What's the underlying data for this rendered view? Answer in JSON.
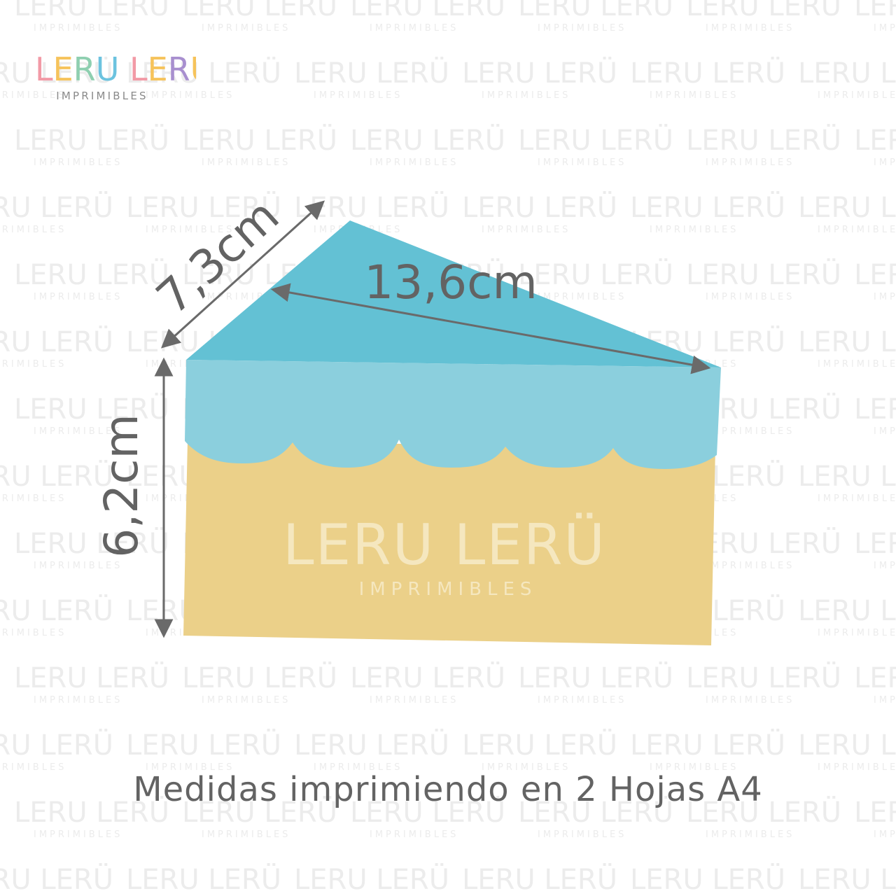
{
  "brand": {
    "name": "LERU LERÜ",
    "subtitle": "IMPRIMIBLES",
    "name_letter_colors": [
      "#f29aa6",
      "#f6c35b",
      "#8ecfb0",
      "#6cc3df",
      "#ffffff",
      "#f29aa6",
      "#f6c35b",
      "#a88fcf",
      "#f6c35b"
    ]
  },
  "watermark": {
    "name": "LERU LERÜ",
    "subtitle": "IMPRIMIBLES",
    "color": "#ececec"
  },
  "cake": {
    "top_color": "#63c1d4",
    "frosting_color": "#8bcfdd",
    "sponge_color": "#ebd089",
    "center_watermark_color": "#f5e7bf"
  },
  "dimensions": {
    "side_label": "7,3cm",
    "length_label": "13,6cm",
    "height_label": "6,2cm",
    "arrow_color": "#6a6a6a",
    "label_color": "#636363"
  },
  "caption": "Medidas imprimiendo en 2 Hojas A4"
}
